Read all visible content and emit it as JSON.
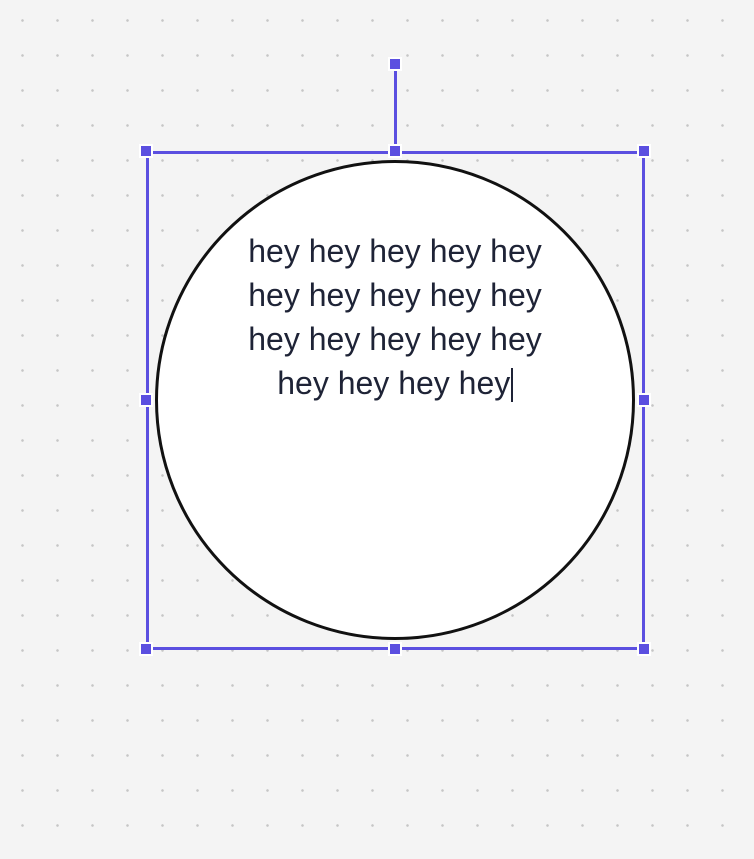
{
  "canvas": {
    "background": "#f4f4f4",
    "grid": "dots"
  },
  "shape": {
    "type": "ellipse",
    "fill": "#ffffff",
    "stroke": "#111111",
    "text_lines": [
      "hey hey hey hey hey",
      "hey hey hey hey hey",
      "hey hey hey hey hey",
      "hey hey hey hey"
    ],
    "text_color": "#1e2336",
    "editing": true
  },
  "selection": {
    "color": "#5b4fe0",
    "handles": [
      "rotate",
      "top-left",
      "top",
      "top-right",
      "right",
      "bottom-right",
      "bottom",
      "bottom-left",
      "left"
    ]
  }
}
